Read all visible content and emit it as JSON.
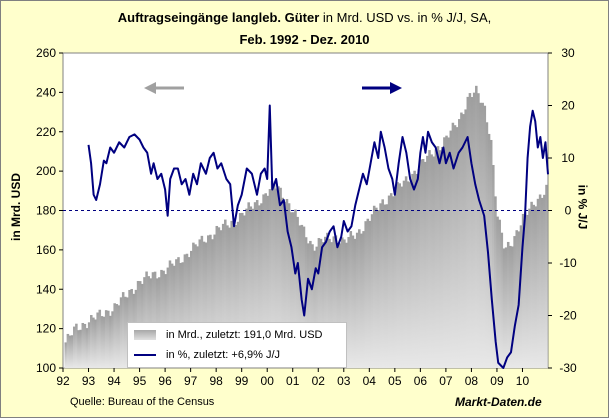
{
  "title": {
    "bold": "Auftragseingänge langleb. Güter",
    "rest": " in Mrd. USD vs. in % J/J, SA,",
    "line2": "Feb. 1992 - Dez. 2010"
  },
  "footer": {
    "source": "Quelle: Bureau of the Census",
    "brand": "Markt-Daten.de"
  },
  "legend": {
    "bars": "in Mrd., zuletzt: 191,0  Mrd. USD",
    "line": "in %, zuletzt: +6,9% J/J"
  },
  "colors": {
    "bars": "#c8c8c8",
    "line": "#000080",
    "arrow_left": "#a0a0a0",
    "arrow_right": "#000080",
    "plot_bg": "#ffffff",
    "frame_bg": "#ffffcc"
  },
  "chart_data": {
    "type": "bar+line",
    "title": "Auftragseingänge langleb. Güter in Mrd. USD vs. in % J/J, SA, Feb. 1992 - Dez. 2010",
    "ylabel_left": "in Mrd. USD",
    "ylabel_right": "in % J/J",
    "ylim_left": [
      100,
      260
    ],
    "ylim_right": [
      -30,
      30
    ],
    "yticks_left": [
      "100",
      "120",
      "140",
      "160",
      "180",
      "200",
      "220",
      "240",
      "260"
    ],
    "yticks_right": [
      "-30",
      "-20",
      "-10",
      "0",
      "10",
      "20",
      "30"
    ],
    "xticks": [
      "92",
      "93",
      "94",
      "95",
      "96",
      "97",
      "98",
      "99",
      "00",
      "01",
      "02",
      "03",
      "04",
      "05",
      "06",
      "07",
      "08",
      "09",
      "10"
    ],
    "x_start_year": 1992,
    "x_end_year": 2011,
    "reference_line_right": 0,
    "series": [
      {
        "name": "in Mrd., zuletzt: 191,0 Mrd. USD",
        "axis": "left",
        "style": "bars",
        "sample": "year-fraction",
        "points": [
          [
            1992.1,
            113
          ],
          [
            1992.5,
            120
          ],
          [
            1993.0,
            124
          ],
          [
            1993.5,
            127
          ],
          [
            1994.0,
            131
          ],
          [
            1994.5,
            137
          ],
          [
            1995.0,
            144
          ],
          [
            1995.5,
            147
          ],
          [
            1996.0,
            150
          ],
          [
            1996.5,
            154
          ],
          [
            1997.0,
            160
          ],
          [
            1997.5,
            165
          ],
          [
            1998.0,
            170
          ],
          [
            1998.5,
            173
          ],
          [
            1999.0,
            178
          ],
          [
            1999.5,
            183
          ],
          [
            1999.9,
            188
          ],
          [
            2000.3,
            193
          ],
          [
            2000.7,
            187
          ],
          [
            2001.0,
            180
          ],
          [
            2001.4,
            170
          ],
          [
            2001.8,
            162
          ],
          [
            2002.2,
            165
          ],
          [
            2002.7,
            167
          ],
          [
            2003.0,
            164
          ],
          [
            2003.5,
            168
          ],
          [
            2004.0,
            176
          ],
          [
            2004.5,
            184
          ],
          [
            2005.0,
            190
          ],
          [
            2005.5,
            196
          ],
          [
            2006.0,
            203
          ],
          [
            2006.5,
            210
          ],
          [
            2007.0,
            216
          ],
          [
            2007.5,
            226
          ],
          [
            2007.9,
            238
          ],
          [
            2008.2,
            240
          ],
          [
            2008.5,
            233
          ],
          [
            2008.75,
            218
          ],
          [
            2009.0,
            178
          ],
          [
            2009.3,
            160
          ],
          [
            2009.6,
            165
          ],
          [
            2010.0,
            175
          ],
          [
            2010.5,
            185
          ],
          [
            2010.95,
            191
          ]
        ]
      },
      {
        "name": "in %, zuletzt: +6,9% J/J",
        "axis": "right",
        "style": "line",
        "sample": "year-fraction",
        "points": [
          [
            1993.0,
            12.5
          ],
          [
            1993.1,
            9
          ],
          [
            1993.2,
            3
          ],
          [
            1993.3,
            2
          ],
          [
            1993.45,
            5
          ],
          [
            1993.6,
            9.5
          ],
          [
            1993.7,
            9
          ],
          [
            1993.85,
            12
          ],
          [
            1994.0,
            11
          ],
          [
            1994.2,
            13
          ],
          [
            1994.4,
            12
          ],
          [
            1994.6,
            14
          ],
          [
            1994.8,
            14.5
          ],
          [
            1995.0,
            13.5
          ],
          [
            1995.15,
            12
          ],
          [
            1995.3,
            11
          ],
          [
            1995.45,
            7
          ],
          [
            1995.55,
            9
          ],
          [
            1995.7,
            6
          ],
          [
            1995.85,
            7
          ],
          [
            1996.0,
            4
          ],
          [
            1996.1,
            -1
          ],
          [
            1996.2,
            6
          ],
          [
            1996.35,
            8
          ],
          [
            1996.5,
            8
          ],
          [
            1996.65,
            5
          ],
          [
            1996.8,
            6
          ],
          [
            1996.95,
            3
          ],
          [
            1997.1,
            7
          ],
          [
            1997.25,
            5
          ],
          [
            1997.4,
            9
          ],
          [
            1997.6,
            7
          ],
          [
            1997.75,
            10
          ],
          [
            1997.9,
            11
          ],
          [
            1998.05,
            8
          ],
          [
            1998.2,
            9
          ],
          [
            1998.4,
            6
          ],
          [
            1998.55,
            5
          ],
          [
            1998.7,
            -3
          ],
          [
            1998.85,
            1
          ],
          [
            1999.0,
            3
          ],
          [
            1999.2,
            8
          ],
          [
            1999.4,
            7
          ],
          [
            1999.6,
            3
          ],
          [
            1999.75,
            7
          ],
          [
            1999.9,
            8
          ],
          [
            2000.0,
            6
          ],
          [
            2000.1,
            20
          ],
          [
            2000.2,
            4
          ],
          [
            2000.35,
            6
          ],
          [
            2000.5,
            1
          ],
          [
            2000.65,
            2
          ],
          [
            2000.8,
            -4
          ],
          [
            2000.95,
            -7
          ],
          [
            2001.1,
            -12
          ],
          [
            2001.2,
            -10
          ],
          [
            2001.35,
            -17
          ],
          [
            2001.45,
            -20
          ],
          [
            2001.6,
            -13
          ],
          [
            2001.75,
            -15
          ],
          [
            2001.9,
            -11
          ],
          [
            2002.0,
            -12
          ],
          [
            2002.15,
            -7
          ],
          [
            2002.3,
            -6
          ],
          [
            2002.45,
            -4
          ],
          [
            2002.6,
            -3
          ],
          [
            2002.75,
            -7
          ],
          [
            2002.9,
            -5
          ],
          [
            2003.0,
            -2
          ],
          [
            2003.15,
            -4
          ],
          [
            2003.3,
            -3
          ],
          [
            2003.45,
            1
          ],
          [
            2003.6,
            4
          ],
          [
            2003.75,
            7
          ],
          [
            2003.9,
            5
          ],
          [
            2004.05,
            9
          ],
          [
            2004.2,
            13
          ],
          [
            2004.35,
            10
          ],
          [
            2004.45,
            15
          ],
          [
            2004.6,
            12
          ],
          [
            2004.75,
            8
          ],
          [
            2004.9,
            6
          ],
          [
            2005.0,
            3
          ],
          [
            2005.15,
            9
          ],
          [
            2005.3,
            14
          ],
          [
            2005.45,
            11
          ],
          [
            2005.6,
            6
          ],
          [
            2005.75,
            4
          ],
          [
            2005.9,
            6
          ],
          [
            2006.0,
            11
          ],
          [
            2006.1,
            14
          ],
          [
            2006.2,
            11
          ],
          [
            2006.3,
            15
          ],
          [
            2006.45,
            13
          ],
          [
            2006.6,
            12
          ],
          [
            2006.75,
            9
          ],
          [
            2006.9,
            12
          ],
          [
            2007.0,
            9
          ],
          [
            2007.15,
            11
          ],
          [
            2007.3,
            8
          ],
          [
            2007.5,
            11
          ],
          [
            2007.65,
            12
          ],
          [
            2007.85,
            14
          ],
          [
            2008.0,
            9
          ],
          [
            2008.15,
            5
          ],
          [
            2008.3,
            2
          ],
          [
            2008.5,
            -1
          ],
          [
            2008.65,
            -8
          ],
          [
            2008.8,
            -17
          ],
          [
            2008.95,
            -25
          ],
          [
            2009.05,
            -29
          ],
          [
            2009.25,
            -30
          ],
          [
            2009.4,
            -28
          ],
          [
            2009.55,
            -27
          ],
          [
            2009.7,
            -22
          ],
          [
            2009.85,
            -18
          ],
          [
            2010.0,
            -7
          ],
          [
            2010.1,
            -1
          ],
          [
            2010.2,
            10
          ],
          [
            2010.3,
            16
          ],
          [
            2010.4,
            19
          ],
          [
            2010.5,
            17
          ],
          [
            2010.6,
            12
          ],
          [
            2010.7,
            14
          ],
          [
            2010.8,
            10
          ],
          [
            2010.9,
            13
          ],
          [
            2011.0,
            6.9
          ]
        ]
      }
    ]
  }
}
